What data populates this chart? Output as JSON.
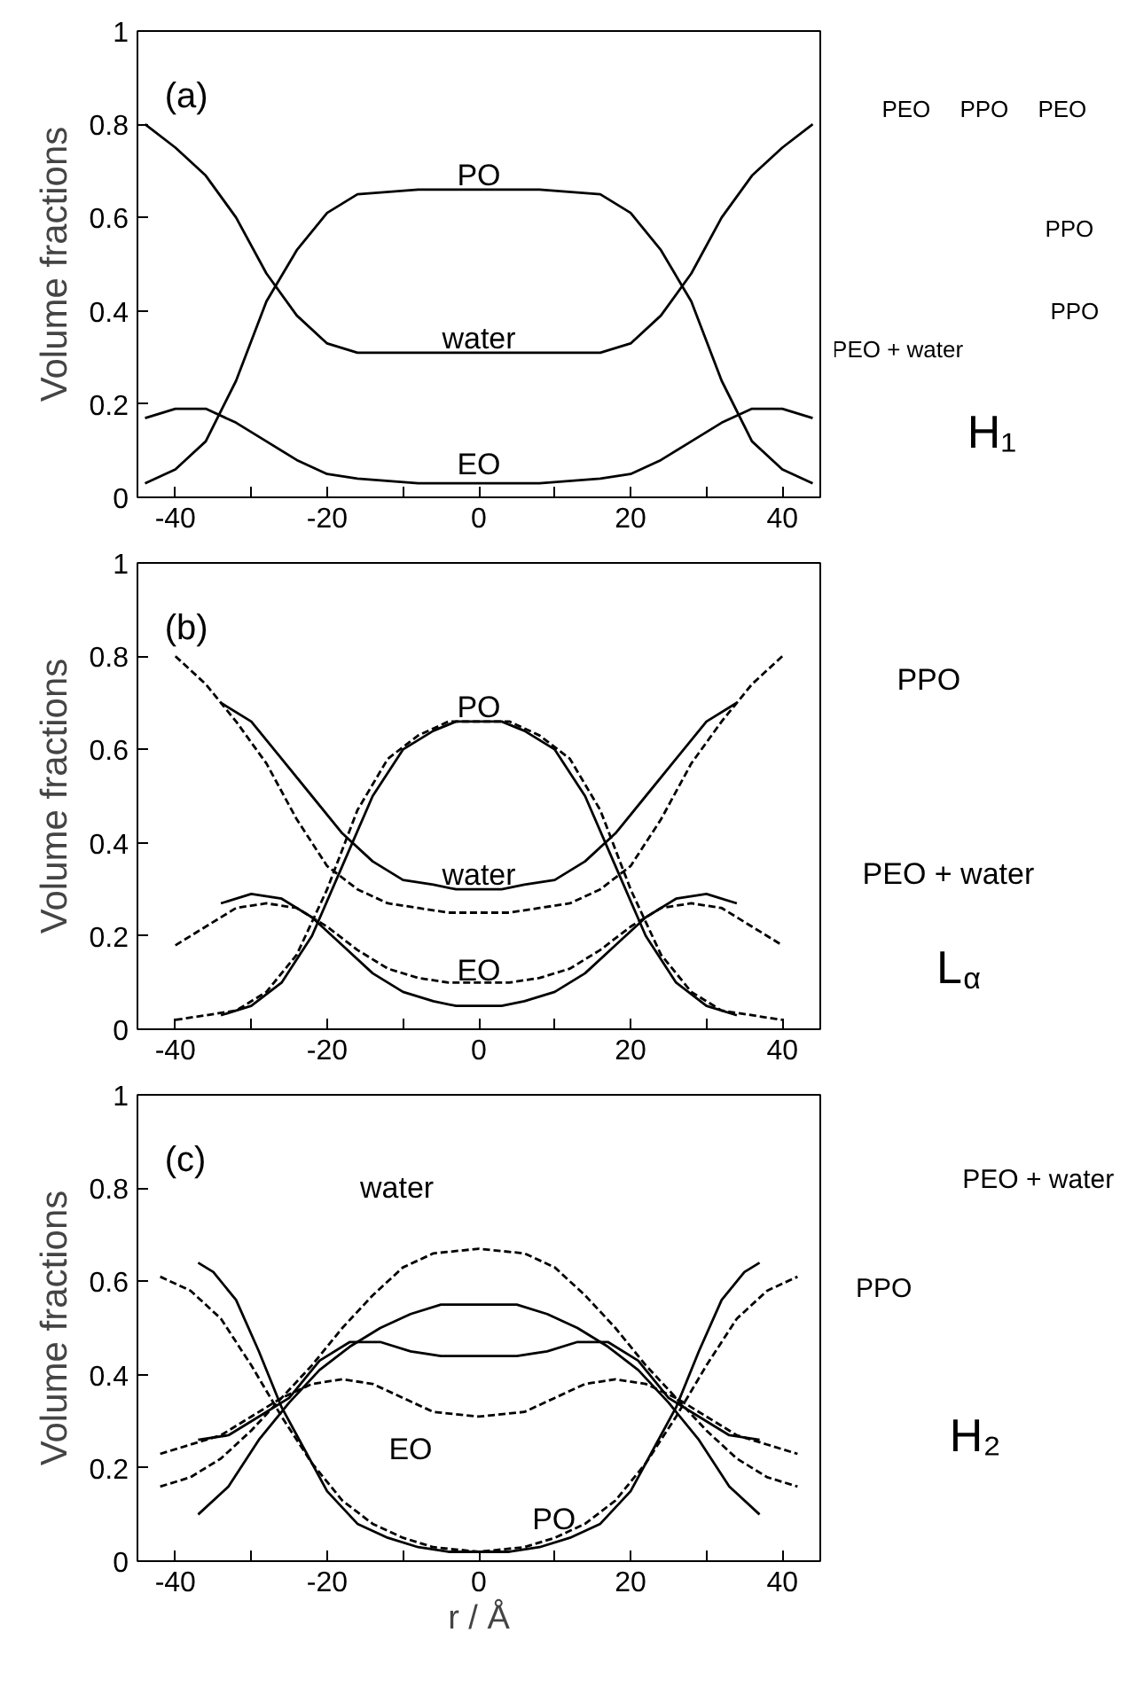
{
  "chart_data": [
    {
      "type": "line",
      "xlabel": null,
      "ylabel": "Volume fractions",
      "xlim": [
        -45,
        45
      ],
      "ylim": [
        0,
        1
      ],
      "xticks": [
        -40,
        {
          "value": -30,
          "label": null
        },
        -20,
        {
          "value": -10,
          "label": null
        },
        0,
        {
          "value": 10,
          "label": null
        },
        20,
        {
          "value": 30,
          "label": null
        },
        40
      ],
      "yticks": [
        0,
        0.2,
        0.4,
        0.6,
        0.8,
        1
      ],
      "grid": false,
      "series": [
        {
          "color": "#000000",
          "line_style": "solid",
          "x": [
            -44,
            -40,
            -36,
            -32,
            -28,
            -24,
            -20,
            -16,
            -8,
            0,
            8,
            16,
            20,
            24,
            28,
            32,
            36,
            40,
            44
          ],
          "values": [
            0.03,
            0.06,
            0.12,
            0.25,
            0.42,
            0.53,
            0.61,
            0.65,
            0.66,
            0.66,
            0.66,
            0.65,
            0.61,
            0.53,
            0.42,
            0.25,
            0.12,
            0.06,
            0.03
          ]
        },
        {
          "color": "#000000",
          "line_style": "solid",
          "x": [
            -44,
            -40,
            -36,
            -32,
            -28,
            -24,
            -20,
            -16,
            -8,
            0,
            8,
            16,
            20,
            24,
            28,
            32,
            36,
            40,
            44
          ],
          "values": [
            0.8,
            0.75,
            0.69,
            0.6,
            0.48,
            0.39,
            0.33,
            0.31,
            0.31,
            0.31,
            0.31,
            0.31,
            0.33,
            0.39,
            0.48,
            0.6,
            0.69,
            0.75,
            0.8
          ]
        },
        {
          "color": "#000000",
          "line_style": "solid",
          "x": [
            -44,
            -40,
            -36,
            -32,
            -28,
            -24,
            -20,
            -16,
            -8,
            0,
            8,
            16,
            20,
            24,
            28,
            32,
            36,
            40,
            44
          ],
          "values": [
            0.17,
            0.19,
            0.19,
            0.16,
            0.12,
            0.08,
            0.05,
            0.04,
            0.03,
            0.03,
            0.03,
            0.04,
            0.05,
            0.08,
            0.12,
            0.16,
            0.19,
            0.19,
            0.17
          ]
        }
      ],
      "annotations": [
        "(a)",
        "PO",
        "water",
        "EO",
        "PEO",
        "PPO",
        "PEO",
        "PPO",
        "PPO",
        "PEO + water",
        "H₁"
      ]
    },
    {
      "type": "line",
      "xlabel": null,
      "ylabel": "Volume fractions",
      "xlim": [
        -45,
        45
      ],
      "ylim": [
        0,
        1
      ],
      "xticks": [
        -40,
        {
          "value": -30,
          "label": null
        },
        -20,
        {
          "value": -10,
          "label": null
        },
        0,
        {
          "value": 10,
          "label": null
        },
        20,
        {
          "value": 30,
          "label": null
        },
        40
      ],
      "yticks": [
        0,
        0.2,
        0.4,
        0.6,
        0.8,
        1
      ],
      "grid": false,
      "series": [
        {
          "color": "#000000",
          "line_style": "solid",
          "x": [
            -34,
            -30,
            -26,
            -22,
            -18,
            -14,
            -10,
            -6,
            -3,
            0,
            3,
            6,
            10,
            14,
            18,
            22,
            26,
            30,
            34
          ],
          "values": [
            0.7,
            0.66,
            0.58,
            0.5,
            0.42,
            0.36,
            0.32,
            0.31,
            0.3,
            0.3,
            0.3,
            0.31,
            0.32,
            0.36,
            0.42,
            0.5,
            0.58,
            0.66,
            0.7
          ]
        },
        {
          "color": "#000000",
          "line_style": "solid",
          "x": [
            -34,
            -30,
            -26,
            -22,
            -18,
            -14,
            -10,
            -6,
            -3,
            0,
            3,
            6,
            10,
            14,
            18,
            22,
            26,
            30,
            34
          ],
          "values": [
            0.03,
            0.05,
            0.1,
            0.2,
            0.35,
            0.5,
            0.6,
            0.64,
            0.66,
            0.66,
            0.66,
            0.64,
            0.6,
            0.5,
            0.35,
            0.2,
            0.1,
            0.05,
            0.03
          ]
        },
        {
          "color": "#000000",
          "line_style": "solid",
          "x": [
            -34,
            -30,
            -26,
            -22,
            -18,
            -14,
            -10,
            -6,
            -3,
            0,
            3,
            6,
            10,
            14,
            18,
            22,
            26,
            30,
            34
          ],
          "values": [
            0.27,
            0.29,
            0.28,
            0.24,
            0.18,
            0.12,
            0.08,
            0.06,
            0.05,
            0.05,
            0.05,
            0.06,
            0.08,
            0.12,
            0.18,
            0.24,
            0.28,
            0.29,
            0.27
          ]
        },
        {
          "color": "#000000",
          "line_style": "dashed",
          "x": [
            -40,
            -36,
            -32,
            -28,
            -24,
            -20,
            -16,
            -12,
            -8,
            -4,
            0,
            4,
            8,
            12,
            16,
            20,
            24,
            28,
            32,
            36,
            40
          ],
          "values": [
            0.8,
            0.74,
            0.66,
            0.57,
            0.45,
            0.35,
            0.3,
            0.27,
            0.26,
            0.25,
            0.25,
            0.25,
            0.26,
            0.27,
            0.3,
            0.35,
            0.45,
            0.57,
            0.66,
            0.74,
            0.8
          ]
        },
        {
          "color": "#000000",
          "line_style": "dashed",
          "x": [
            -40,
            -36,
            -32,
            -28,
            -24,
            -20,
            -16,
            -12,
            -8,
            -4,
            0,
            4,
            8,
            12,
            16,
            20,
            24,
            28,
            32,
            36,
            40
          ],
          "values": [
            0.02,
            0.03,
            0.04,
            0.08,
            0.16,
            0.3,
            0.47,
            0.58,
            0.63,
            0.66,
            0.66,
            0.66,
            0.63,
            0.58,
            0.47,
            0.3,
            0.16,
            0.08,
            0.04,
            0.03,
            0.02
          ]
        },
        {
          "color": "#000000",
          "line_style": "dashed",
          "x": [
            -40,
            -36,
            -32,
            -28,
            -24,
            -20,
            -16,
            -12,
            -8,
            -4,
            0,
            4,
            8,
            12,
            16,
            20,
            24,
            28,
            32,
            36,
            40
          ],
          "values": [
            0.18,
            0.22,
            0.26,
            0.27,
            0.26,
            0.22,
            0.17,
            0.13,
            0.11,
            0.1,
            0.1,
            0.1,
            0.11,
            0.13,
            0.17,
            0.22,
            0.26,
            0.27,
            0.26,
            0.22,
            0.18
          ]
        }
      ],
      "annotations": [
        "(b)",
        "PO",
        "water",
        "EO",
        "PPO",
        "PEO + water",
        "L$_{α}$"
      ]
    },
    {
      "type": "line",
      "xlabel": "r / Å",
      "ylabel": "Volume fractions",
      "xlim": [
        -45,
        45
      ],
      "ylim": [
        0,
        1
      ],
      "xticks": [
        -40,
        {
          "value": -30,
          "label": null
        },
        -20,
        {
          "value": -10,
          "label": null
        },
        0,
        {
          "value": 10,
          "label": null
        },
        20,
        {
          "value": 30,
          "label": null
        },
        40
      ],
      "yticks": [
        0,
        0.2,
        0.4,
        0.6,
        0.8,
        1
      ],
      "grid": false,
      "series": [
        {
          "color": "#000000",
          "line_style": "solid",
          "x": [
            -37,
            -33,
            -29,
            -25,
            -21,
            -17,
            -13,
            -9,
            -5,
            0,
            5,
            9,
            13,
            17,
            21,
            25,
            29,
            33,
            37
          ],
          "values": [
            0.1,
            0.16,
            0.26,
            0.34,
            0.41,
            0.46,
            0.5,
            0.53,
            0.55,
            0.55,
            0.55,
            0.53,
            0.5,
            0.46,
            0.41,
            0.34,
            0.26,
            0.16,
            0.1
          ]
        },
        {
          "color": "#000000",
          "line_style": "solid",
          "x": [
            -37,
            -33,
            -29,
            -25,
            -21,
            -17,
            -13,
            -9,
            -5,
            0,
            5,
            9,
            13,
            17,
            21,
            25,
            29,
            33,
            37
          ],
          "values": [
            0.26,
            0.27,
            0.31,
            0.35,
            0.43,
            0.47,
            0.47,
            0.45,
            0.44,
            0.44,
            0.44,
            0.45,
            0.47,
            0.47,
            0.43,
            0.35,
            0.31,
            0.27,
            0.26
          ]
        },
        {
          "color": "#000000",
          "line_style": "solid",
          "x": [
            -37,
            -35,
            -32,
            -29,
            -26,
            -23,
            -20,
            -16,
            -12,
            -8,
            -4,
            0,
            4,
            8,
            12,
            16,
            20,
            23,
            26,
            29,
            32,
            35,
            37
          ],
          "values": [
            0.64,
            0.62,
            0.56,
            0.45,
            0.33,
            0.24,
            0.15,
            0.08,
            0.05,
            0.03,
            0.02,
            0.02,
            0.02,
            0.03,
            0.05,
            0.08,
            0.15,
            0.24,
            0.33,
            0.45,
            0.56,
            0.62,
            0.64
          ]
        },
        {
          "color": "#000000",
          "line_style": "dashed",
          "x": [
            -42,
            -38,
            -34,
            -30,
            -26,
            -22,
            -18,
            -14,
            -10,
            -6,
            0,
            6,
            10,
            14,
            18,
            22,
            26,
            30,
            34,
            38,
            42
          ],
          "values": [
            0.16,
            0.18,
            0.22,
            0.28,
            0.35,
            0.42,
            0.5,
            0.57,
            0.63,
            0.66,
            0.67,
            0.66,
            0.63,
            0.57,
            0.5,
            0.42,
            0.35,
            0.28,
            0.22,
            0.18,
            0.16
          ]
        },
        {
          "color": "#000000",
          "line_style": "dashed",
          "x": [
            -42,
            -38,
            -34,
            -30,
            -26,
            -22,
            -18,
            -14,
            -10,
            -6,
            0,
            6,
            10,
            14,
            18,
            22,
            26,
            30,
            34,
            38,
            42
          ],
          "values": [
            0.23,
            0.25,
            0.27,
            0.31,
            0.35,
            0.38,
            0.39,
            0.38,
            0.35,
            0.32,
            0.31,
            0.32,
            0.35,
            0.38,
            0.39,
            0.38,
            0.35,
            0.31,
            0.27,
            0.25,
            0.23
          ]
        },
        {
          "color": "#000000",
          "line_style": "dashed",
          "x": [
            -42,
            -38,
            -34,
            -30,
            -26,
            -22,
            -18,
            -14,
            -10,
            -6,
            0,
            6,
            10,
            14,
            18,
            22,
            26,
            30,
            34,
            38,
            42
          ],
          "values": [
            0.61,
            0.58,
            0.52,
            0.42,
            0.31,
            0.21,
            0.13,
            0.08,
            0.05,
            0.03,
            0.02,
            0.03,
            0.05,
            0.08,
            0.13,
            0.21,
            0.31,
            0.42,
            0.52,
            0.58,
            0.61
          ]
        }
      ],
      "annotations": [
        "(c)",
        "water",
        "EO",
        "PO",
        "PEO + water",
        "PPO",
        "H₂"
      ]
    }
  ]
}
